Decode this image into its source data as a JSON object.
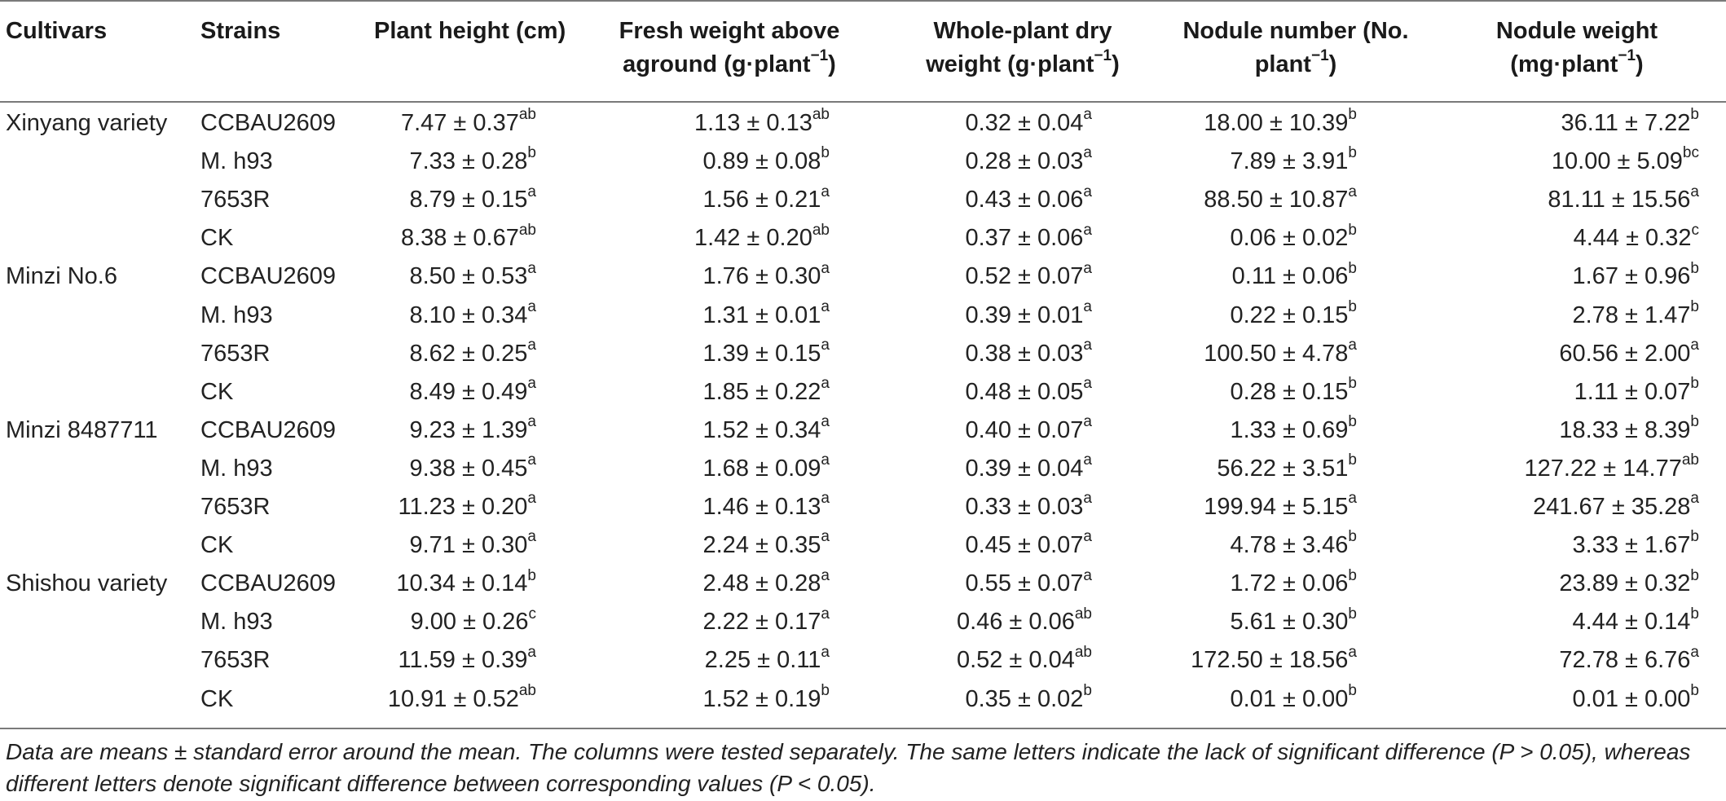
{
  "table": {
    "headers": [
      [
        "Cultivars"
      ],
      [
        "Strains"
      ],
      [
        "Plant height (cm)"
      ],
      [
        "Fresh weight above",
        "aground (g·plant",
        "−1",
        ")"
      ],
      [
        "Whole-plant dry",
        "weight (g·plant",
        "−1",
        ")"
      ],
      [
        "Nodule number (No.",
        "plant",
        "−1",
        ")"
      ],
      [
        "Nodule weight",
        "(mg·plant",
        "−1",
        ")"
      ]
    ],
    "header_lines": {
      "cultivars": "Cultivars",
      "strains": "Strains",
      "height": "Plant height (cm)",
      "fresh_1": "Fresh weight above",
      "fresh_2": "aground (g·plant",
      "dry_1": "Whole-plant dry",
      "dry_2": "weight (g·plant",
      "nnum_1": "Nodule number (No.",
      "nnum_2": "plant",
      "nwt_1": "Nodule weight",
      "nwt_2": "(mg·plant",
      "sup": "−1",
      "close": ")"
    },
    "rows": [
      {
        "cultivar": "Xinyang variety",
        "strain": "CCBAU2609",
        "height": "7.47 ± 0.37",
        "height_sig": "ab",
        "fresh": "1.13 ± 0.13",
        "fresh_sig": "ab",
        "dry": "0.32 ± 0.04",
        "dry_sig": "a",
        "nnum": "18.00 ± 10.39",
        "nnum_sig": "b",
        "nwt": "36.11 ± 7.22",
        "nwt_sig": "b"
      },
      {
        "cultivar": "",
        "strain": "M. h93",
        "height": "7.33 ± 0.28",
        "height_sig": "b",
        "fresh": "0.89 ± 0.08",
        "fresh_sig": "b",
        "dry": "0.28 ± 0.03",
        "dry_sig": "a",
        "nnum": "7.89 ± 3.91",
        "nnum_sig": "b",
        "nwt": "10.00 ± 5.09",
        "nwt_sig": "bc"
      },
      {
        "cultivar": "",
        "strain": "7653R",
        "height": "8.79 ± 0.15",
        "height_sig": "a",
        "fresh": "1.56 ± 0.21",
        "fresh_sig": "a",
        "dry": "0.43 ± 0.06",
        "dry_sig": "a",
        "nnum": "88.50 ± 10.87",
        "nnum_sig": "a",
        "nwt": "81.11 ± 15.56",
        "nwt_sig": "a"
      },
      {
        "cultivar": "",
        "strain": "CK",
        "height": "8.38 ± 0.67",
        "height_sig": "ab",
        "fresh": "1.42 ± 0.20",
        "fresh_sig": "ab",
        "dry": "0.37 ± 0.06",
        "dry_sig": "a",
        "nnum": "0.06 ± 0.02",
        "nnum_sig": "b",
        "nwt": "4.44 ± 0.32",
        "nwt_sig": "c"
      },
      {
        "cultivar": "Minzi No.6",
        "strain": "CCBAU2609",
        "height": "8.50 ± 0.53",
        "height_sig": "a",
        "fresh": "1.76 ± 0.30",
        "fresh_sig": "a",
        "dry": "0.52 ± 0.07",
        "dry_sig": "a",
        "nnum": "0.11 ± 0.06",
        "nnum_sig": "b",
        "nwt": "1.67 ± 0.96",
        "nwt_sig": "b"
      },
      {
        "cultivar": "",
        "strain": "M. h93",
        "height": "8.10 ± 0.34",
        "height_sig": "a",
        "fresh": "1.31 ± 0.01",
        "fresh_sig": "a",
        "dry": "0.39 ± 0.01",
        "dry_sig": "a",
        "nnum": "0.22 ± 0.15",
        "nnum_sig": "b",
        "nwt": "2.78 ± 1.47",
        "nwt_sig": "b"
      },
      {
        "cultivar": "",
        "strain": "7653R",
        "height": "8.62 ± 0.25",
        "height_sig": "a",
        "fresh": "1.39 ± 0.15",
        "fresh_sig": "a",
        "dry": "0.38 ± 0.03",
        "dry_sig": "a",
        "nnum": "100.50 ± 4.78",
        "nnum_sig": "a",
        "nwt": "60.56 ± 2.00",
        "nwt_sig": "a"
      },
      {
        "cultivar": "",
        "strain": "CK",
        "height": "8.49 ± 0.49",
        "height_sig": "a",
        "fresh": "1.85 ± 0.22",
        "fresh_sig": "a",
        "dry": "0.48 ± 0.05",
        "dry_sig": "a",
        "nnum": "0.28 ± 0.15",
        "nnum_sig": "b",
        "nwt": "1.11 ± 0.07",
        "nwt_sig": "b"
      },
      {
        "cultivar": "Minzi 8487711",
        "strain": "CCBAU2609",
        "height": "9.23 ± 1.39",
        "height_sig": "a",
        "fresh": "1.52 ± 0.34",
        "fresh_sig": "a",
        "dry": "0.40 ± 0.07",
        "dry_sig": "a",
        "nnum": "1.33 ± 0.69",
        "nnum_sig": "b",
        "nwt": "18.33 ± 8.39",
        "nwt_sig": "b"
      },
      {
        "cultivar": "",
        "strain": "M. h93",
        "height": "9.38 ± 0.45",
        "height_sig": "a",
        "fresh": "1.68 ± 0.09",
        "fresh_sig": "a",
        "dry": "0.39 ± 0.04",
        "dry_sig": "a",
        "nnum": "56.22 ± 3.51",
        "nnum_sig": "b",
        "nwt": "127.22 ± 14.77",
        "nwt_sig": "ab"
      },
      {
        "cultivar": "",
        "strain": "7653R",
        "height": "11.23 ± 0.20",
        "height_sig": "a",
        "fresh": "1.46 ± 0.13",
        "fresh_sig": "a",
        "dry": "0.33 ± 0.03",
        "dry_sig": "a",
        "nnum": "199.94 ± 5.15",
        "nnum_sig": "a",
        "nwt": "241.67 ± 35.28",
        "nwt_sig": "a"
      },
      {
        "cultivar": "",
        "strain": "CK",
        "height": "9.71 ± 0.30",
        "height_sig": "a",
        "fresh": "2.24 ± 0.35",
        "fresh_sig": "a",
        "dry": "0.45 ± 0.07",
        "dry_sig": "a",
        "nnum": "4.78 ± 3.46",
        "nnum_sig": "b",
        "nwt": "3.33 ± 1.67",
        "nwt_sig": "b"
      },
      {
        "cultivar": "Shishou variety",
        "strain": "CCBAU2609",
        "height": "10.34 ± 0.14",
        "height_sig": "b",
        "fresh": "2.48 ± 0.28",
        "fresh_sig": "a",
        "dry": "0.55 ± 0.07",
        "dry_sig": "a",
        "nnum": "1.72 ± 0.06",
        "nnum_sig": "b",
        "nwt": "23.89 ± 0.32",
        "nwt_sig": "b"
      },
      {
        "cultivar": "",
        "strain": "M. h93",
        "height": "9.00 ± 0.26",
        "height_sig": "c",
        "fresh": "2.22 ± 0.17",
        "fresh_sig": "a",
        "dry": "0.46 ± 0.06",
        "dry_sig": "ab",
        "nnum": "5.61 ± 0.30",
        "nnum_sig": "b",
        "nwt": "4.44 ± 0.14",
        "nwt_sig": "b"
      },
      {
        "cultivar": "",
        "strain": "7653R",
        "height": "11.59 ± 0.39",
        "height_sig": "a",
        "fresh": "2.25 ± 0.11",
        "fresh_sig": "a",
        "dry": "0.52 ± 0.04",
        "dry_sig": "ab",
        "nnum": "172.50 ± 18.56",
        "nnum_sig": "a",
        "nwt": "72.78 ± 6.76",
        "nwt_sig": "a"
      },
      {
        "cultivar": "",
        "strain": "CK",
        "height": "10.91 ± 0.52",
        "height_sig": "ab",
        "fresh": "1.52 ± 0.19",
        "fresh_sig": "b",
        "dry": "0.35 ± 0.02",
        "dry_sig": "b",
        "nnum": "0.01 ± 0.00",
        "nnum_sig": "b",
        "nwt": "0.01 ± 0.00",
        "nwt_sig": "b"
      }
    ]
  },
  "footnote": {
    "line1": "Data are means ± standard error around the mean. The columns were tested separately. The same letters indicate the lack of significant difference (P > 0.05), whereas",
    "line2": "different letters denote significant difference between corresponding values (P < 0.05)."
  }
}
